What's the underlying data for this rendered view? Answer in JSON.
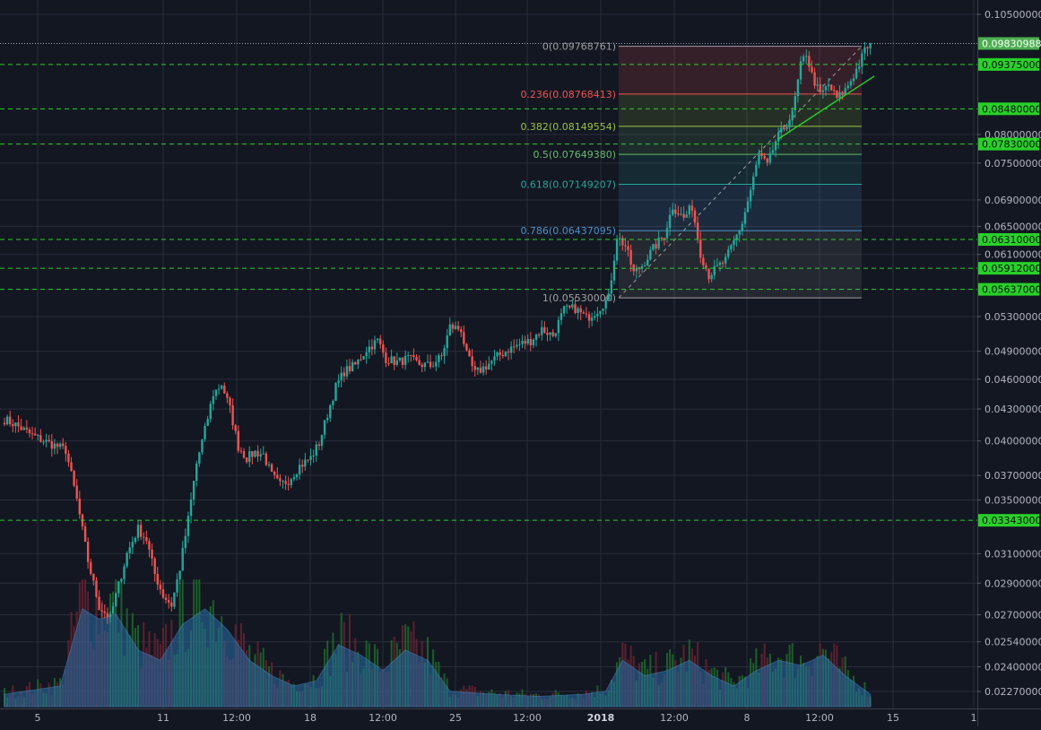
{
  "colors": {
    "background": "#131722",
    "grid": "#2a2e3a",
    "up": "#26a69a",
    "down": "#ef5350",
    "support_line": "#28d128",
    "label_bg_green": "#28d128",
    "current_price_bg": "#4caf50",
    "axis_text": "#b2b5be"
  },
  "chart_data": {
    "type": "candlestick",
    "title": "",
    "y_scale": "log",
    "y_axis_position": "right",
    "grid": true,
    "ylim": [
      0.0219,
      0.1075
    ],
    "y_ticks": [
      "0.10500000",
      "0.08000000",
      "0.07500000",
      "0.06900000",
      "0.06500000",
      "0.06100000",
      "0.05300000",
      "0.04900000",
      "0.04600000",
      "0.04300000",
      "0.04000000",
      "0.03700000",
      "0.03500000",
      "0.03100000",
      "0.02900000",
      "0.02700000",
      "0.02540000",
      "0.02400000",
      "0.02270000"
    ],
    "x_ticks": [
      "5",
      "11",
      "12:00",
      "18",
      "12:00",
      "25",
      "12:00",
      "2018",
      "12:00",
      "8",
      "12:00",
      "15",
      "1"
    ],
    "current_price": "0.09830988",
    "horizontal_levels": [
      "0.09375000",
      "0.08480000",
      "0.07830000",
      "0.06310000",
      "0.05912000",
      "0.05637000",
      "0.03343000"
    ],
    "fibonacci": {
      "start": 0.0553,
      "end": 0.09768761,
      "levels": [
        {
          "label": "0(0.09768761)",
          "value": 0.09768761,
          "color": "#9e9e9e"
        },
        {
          "label": "0.236(0.08768413)",
          "value": 0.08768413,
          "color": "#ef5350"
        },
        {
          "label": "0.382(0.08149554)",
          "value": 0.08149554,
          "color": "#9bc33c"
        },
        {
          "label": "0.5(0.07649380)",
          "value": 0.0764938,
          "color": "#66bb6a"
        },
        {
          "label": "0.618(0.07149207)",
          "value": 0.07149207,
          "color": "#26a69a"
        },
        {
          "label": "0.786(0.06437095)",
          "value": 0.06437095,
          "color": "#4a90c8"
        },
        {
          "label": "1(0.05530000)",
          "value": 0.0553,
          "color": "#9e9e9e"
        }
      ]
    },
    "trendline": {
      "from": 0.0792,
      "to": 0.0913
    },
    "price_series": {
      "anchors": [
        [
          0,
          0.042
        ],
        [
          4,
          0.0415
        ],
        [
          10,
          0.0405
        ],
        [
          16,
          0.0398
        ],
        [
          22,
          0.0392
        ],
        [
          26,
          0.035
        ],
        [
          30,
          0.0305
        ],
        [
          34,
          0.0275
        ],
        [
          38,
          0.0268
        ],
        [
          40,
          0.0282
        ],
        [
          44,
          0.031
        ],
        [
          48,
          0.0328
        ],
        [
          51,
          0.032
        ],
        [
          54,
          0.0296
        ],
        [
          57,
          0.0282
        ],
        [
          60,
          0.0276
        ],
        [
          63,
          0.03
        ],
        [
          66,
          0.0335
        ],
        [
          69,
          0.038
        ],
        [
          72,
          0.041
        ],
        [
          75,
          0.0445
        ],
        [
          78,
          0.0455
        ],
        [
          81,
          0.043
        ],
        [
          84,
          0.0395
        ],
        [
          87,
          0.0385
        ],
        [
          90,
          0.039
        ],
        [
          93,
          0.0388
        ],
        [
          96,
          0.037
        ],
        [
          99,
          0.0362
        ],
        [
          102,
          0.0366
        ],
        [
          106,
          0.0378
        ],
        [
          110,
          0.0385
        ],
        [
          113,
          0.0398
        ],
        [
          116,
          0.0425
        ],
        [
          119,
          0.0452
        ],
        [
          122,
          0.0468
        ],
        [
          126,
          0.0475
        ],
        [
          130,
          0.0492
        ],
        [
          134,
          0.0502
        ],
        [
          137,
          0.0482
        ],
        [
          141,
          0.0478
        ],
        [
          145,
          0.0482
        ],
        [
          149,
          0.0476
        ],
        [
          153,
          0.0474
        ],
        [
          157,
          0.0484
        ],
        [
          160,
          0.0518
        ],
        [
          164,
          0.0515
        ],
        [
          166,
          0.0486
        ],
        [
          169,
          0.0466
        ],
        [
          173,
          0.0474
        ],
        [
          177,
          0.0484
        ],
        [
          181,
          0.0492
        ],
        [
          185,
          0.0498
        ],
        [
          189,
          0.0502
        ],
        [
          193,
          0.0515
        ],
        [
          197,
          0.0508
        ],
        [
          201,
          0.0538
        ],
        [
          205,
          0.054
        ],
        [
          209,
          0.0528
        ],
        [
          213,
          0.0538
        ],
        [
          217,
          0.0553
        ],
        [
          220,
          0.0635
        ],
        [
          223,
          0.0622
        ],
        [
          226,
          0.0585
        ],
        [
          229,
          0.0595
        ],
        [
          233,
          0.0618
        ],
        [
          237,
          0.0638
        ],
        [
          240,
          0.068
        ],
        [
          244,
          0.0662
        ],
        [
          247,
          0.068
        ],
        [
          250,
          0.0612
        ],
        [
          253,
          0.0582
        ],
        [
          256,
          0.0592
        ],
        [
          259,
          0.0602
        ],
        [
          262,
          0.0628
        ],
        [
          265,
          0.0655
        ],
        [
          268,
          0.0705
        ],
        [
          271,
          0.0765
        ],
        [
          274,
          0.0745
        ],
        [
          277,
          0.0788
        ],
        [
          280,
          0.0812
        ],
        [
          283,
          0.0838
        ],
        [
          286,
          0.0935
        ],
        [
          288,
          0.0962
        ],
        [
          290,
          0.0915
        ],
        [
          293,
          0.0875
        ],
        [
          296,
          0.0895
        ],
        [
          299,
          0.0868
        ],
        [
          302,
          0.0885
        ],
        [
          305,
          0.0915
        ],
        [
          307,
          0.0938
        ],
        [
          309,
          0.0968
        ],
        [
          311,
          0.09830988
        ]
      ]
    },
    "volume": {
      "description": "volume histogram with moving average area",
      "relative_profile": [
        [
          0,
          0.12
        ],
        [
          20,
          0.2
        ],
        [
          28,
          0.95
        ],
        [
          34,
          0.85
        ],
        [
          40,
          0.9
        ],
        [
          48,
          0.55
        ],
        [
          56,
          0.45
        ],
        [
          64,
          0.8
        ],
        [
          72,
          0.95
        ],
        [
          80,
          0.75
        ],
        [
          88,
          0.45
        ],
        [
          96,
          0.3
        ],
        [
          104,
          0.2
        ],
        [
          112,
          0.25
        ],
        [
          120,
          0.6
        ],
        [
          128,
          0.5
        ],
        [
          136,
          0.35
        ],
        [
          144,
          0.55
        ],
        [
          152,
          0.45
        ],
        [
          160,
          0.15
        ],
        [
          176,
          0.12
        ],
        [
          192,
          0.1
        ],
        [
          208,
          0.12
        ],
        [
          216,
          0.15
        ],
        [
          222,
          0.45
        ],
        [
          230,
          0.3
        ],
        [
          238,
          0.35
        ],
        [
          246,
          0.45
        ],
        [
          254,
          0.3
        ],
        [
          262,
          0.2
        ],
        [
          270,
          0.35
        ],
        [
          278,
          0.45
        ],
        [
          286,
          0.4
        ],
        [
          294,
          0.5
        ],
        [
          302,
          0.3
        ],
        [
          311,
          0.12
        ]
      ]
    }
  }
}
